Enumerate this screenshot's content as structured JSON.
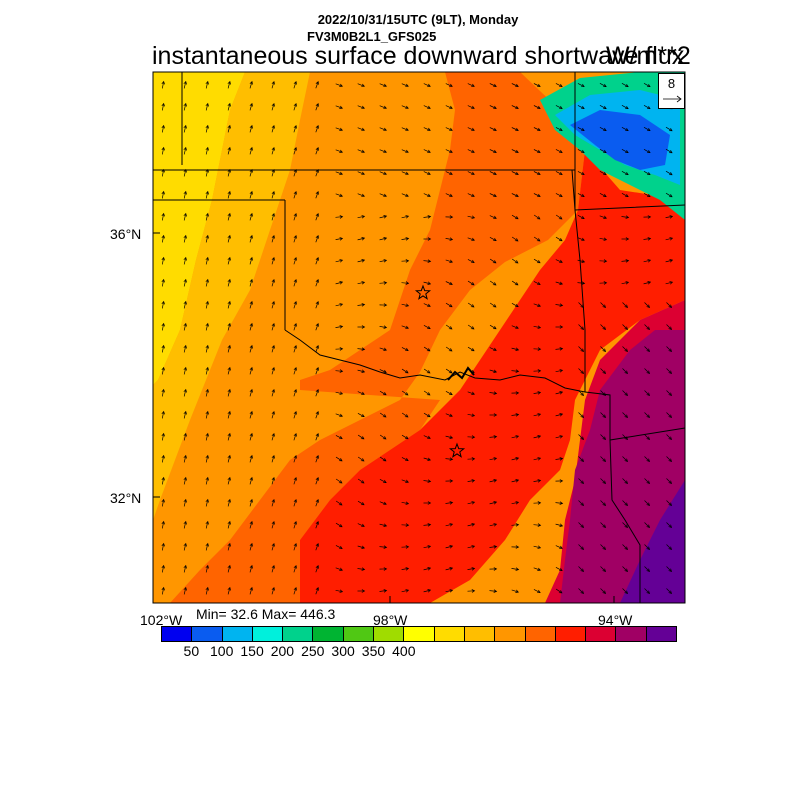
{
  "header": {
    "datetime": "2022/10/31/15UTC (9LT), Monday",
    "model": "FV3M0B2L1_GFS025",
    "title": "instantaneous surface downward shortwave flux",
    "units": "W/m**2"
  },
  "stats": {
    "text": "Min= 32.6 Max= 446.3",
    "min": 32.6,
    "max": 446.3
  },
  "axes": {
    "lat_labels": [
      "36°N",
      "32°N"
    ],
    "lon_labels": [
      "102°W",
      "98°W",
      "94°W"
    ]
  },
  "reference_vector": {
    "label": "8"
  },
  "colorbar": {
    "labels": [
      "50",
      "100",
      "150",
      "200",
      "250",
      "300",
      "350",
      "400"
    ],
    "colors": [
      "#0000f0",
      "#0a5cf0",
      "#00b4f0",
      "#00f0dc",
      "#00d28c",
      "#00b432",
      "#50c814",
      "#a0dc00",
      "#ffff00",
      "#ffdc00",
      "#ffbe00",
      "#ff9600",
      "#ff6400",
      "#ff1e00",
      "#dc0032",
      "#a00064",
      "#640096"
    ]
  },
  "map": {
    "markers": [
      "star-okc",
      "star-dfw"
    ],
    "colors": {
      "yellow": "#ffdc00",
      "gold": "#ffbe00",
      "orange": "#ff9600",
      "dark_orange": "#ff6400",
      "red": "#ff1e00",
      "crimson": "#dc0032",
      "magenta": "#a00064",
      "purple": "#640096",
      "blue": "#0a5cf0",
      "cyan": "#00b4f0",
      "green": "#00d28c"
    }
  }
}
